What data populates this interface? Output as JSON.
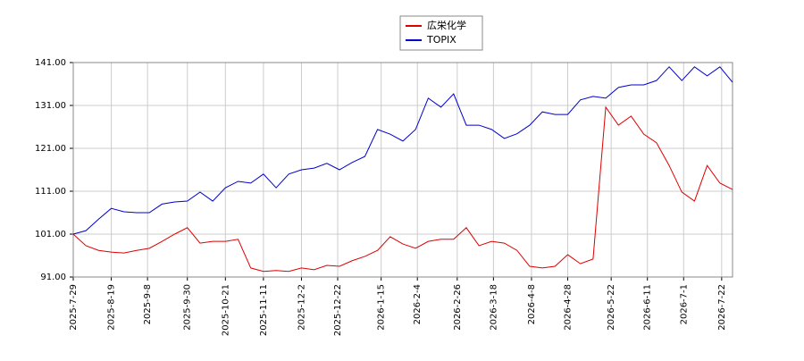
{
  "chart_data": {
    "type": "line",
    "x": [
      "2025-7-29",
      "2025-8-5",
      "2025-8-12",
      "2025-8-19",
      "2025-8-26",
      "2025-9-2",
      "2025-9-9",
      "2025-9-16",
      "2025-9-23",
      "2025-9-30",
      "2025-10-7",
      "2025-10-14",
      "2025-10-21",
      "2025-10-28",
      "2025-11-4",
      "2025-11-11",
      "2025-11-18",
      "2025-11-25",
      "2025-12-2",
      "2025-12-9",
      "2025-12-16",
      "2025-12-23",
      "2025-12-30",
      "2026-1-6",
      "2026-1-13",
      "2026-1-20",
      "2026-1-27",
      "2026-2-3",
      "2026-2-10",
      "2026-2-17",
      "2026-2-24",
      "2026-3-3",
      "2026-3-10",
      "2026-3-17",
      "2026-3-24",
      "2026-3-31",
      "2026-4-7",
      "2026-4-14",
      "2026-4-21",
      "2026-4-28",
      "2026-5-5",
      "2026-5-12",
      "2026-5-19",
      "2026-5-26",
      "2026-6-2",
      "2026-6-9",
      "2026-6-16",
      "2026-6-23",
      "2026-6-30",
      "2026-7-7",
      "2026-7-14",
      "2026-7-21",
      "2026-7-28"
    ],
    "series": [
      {
        "name": "広栄化学",
        "color": "#dd0000",
        "values": [
          101,
          98.3,
          97.2,
          96.8,
          96.6,
          97.2,
          97.7,
          99.3,
          101,
          102.5,
          98.9,
          99.3,
          99.3,
          99.8,
          93.1,
          92.3,
          92.5,
          92.3,
          93.1,
          92.7,
          93.7,
          93.5,
          94.8,
          95.8,
          97.2,
          100.4,
          98.7,
          97.7,
          99.3,
          99.8,
          99.8,
          102.5,
          98.3,
          99.3,
          98.9,
          97.2,
          93.5,
          93.1,
          93.5,
          96.2,
          94.1,
          95.2,
          130.6,
          126.4,
          128.5,
          124.3,
          122.3,
          117,
          110.8,
          108.7,
          117,
          112.9,
          111.4
        ]
      },
      {
        "name": "TOPIX",
        "color": "#0000cc",
        "values": [
          101,
          101.8,
          104.5,
          107,
          106.2,
          106,
          106,
          108,
          108.5,
          108.7,
          110.8,
          108.7,
          111.8,
          113.3,
          112.9,
          115,
          111.8,
          115,
          116,
          116.4,
          117.5,
          116,
          117.7,
          119.1,
          125.4,
          124.3,
          122.7,
          125.4,
          132.7,
          130.6,
          133.7,
          126.4,
          126.4,
          125.4,
          123.3,
          124.4,
          126.4,
          129.5,
          128.9,
          128.9,
          132.3,
          133.1,
          132.7,
          135.2,
          135.8,
          135.8,
          136.8,
          140,
          136.8,
          140,
          137.9,
          140,
          136.4
        ]
      }
    ],
    "xlim": [
      "2025-7-29",
      "2026-7-28"
    ],
    "xticks": [
      "2025-7-29",
      "2025-8-19",
      "2025-9-8",
      "2025-9-30",
      "2025-10-21",
      "2025-11-11",
      "2025-12-2",
      "2025-12-22",
      "2026-1-15",
      "2026-2-4",
      "2026-2-26",
      "2026-3-18",
      "2026-4-8",
      "2026-4-28",
      "2026-5-22",
      "2026-6-11",
      "2026-7-1",
      "2026-7-22"
    ],
    "ylim": [
      91,
      141
    ],
    "yticks": [
      {
        "value": 91,
        "label": "91.00"
      },
      {
        "value": 101,
        "label": "101.00"
      },
      {
        "value": 111,
        "label": "111.00"
      },
      {
        "value": 121,
        "label": "121.00"
      },
      {
        "value": 131,
        "label": "131.00"
      },
      {
        "value": 141,
        "label": "141.00"
      }
    ],
    "grid": true,
    "legend": "top"
  }
}
